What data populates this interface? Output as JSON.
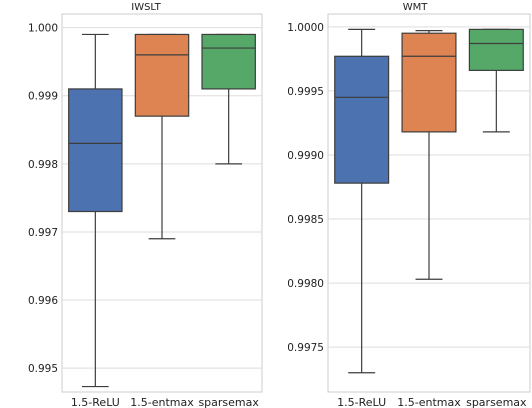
{
  "chart_data": [
    {
      "type": "box",
      "title": "IWSLT",
      "xlabel": "",
      "ylabel": "",
      "categories": [
        "1.5-ReLU",
        "1.5-entmax",
        "sparsemax"
      ],
      "ylim": [
        0.99465,
        1.0002
      ],
      "yticks": [
        "0.995",
        "0.996",
        "0.997",
        "0.998",
        "0.999",
        "1.000"
      ],
      "ytick_values": [
        0.995,
        0.996,
        0.997,
        0.998,
        0.999,
        1.0
      ],
      "grid": true,
      "series": [
        {
          "category": "1.5-ReLU",
          "whisker_low": 0.99473,
          "q1": 0.9973,
          "median": 0.9983,
          "q3": 0.9991,
          "whisker_high": 0.9999,
          "color": "#4c72b0"
        },
        {
          "category": "1.5-entmax",
          "whisker_low": 0.9969,
          "q1": 0.9987,
          "median": 0.9996,
          "q3": 0.9999,
          "whisker_high": 0.9999,
          "color": "#dd8452"
        },
        {
          "category": "sparsemax",
          "whisker_low": 0.998,
          "q1": 0.9991,
          "median": 0.9997,
          "q3": 0.9999,
          "whisker_high": 0.9999,
          "color": "#55a868"
        }
      ]
    },
    {
      "type": "box",
      "title": "WMT",
      "xlabel": "",
      "ylabel": "",
      "categories": [
        "1.5-ReLU",
        "1.5-entmax",
        "sparsemax"
      ],
      "ylim": [
        0.99715,
        1.0001
      ],
      "yticks": [
        "0.9975",
        "0.9980",
        "0.9985",
        "0.9990",
        "0.9995",
        "1.0000"
      ],
      "ytick_values": [
        0.9975,
        0.998,
        0.9985,
        0.999,
        0.9995,
        1.0
      ],
      "grid": true,
      "series": [
        {
          "category": "1.5-ReLU",
          "whisker_low": 0.9973,
          "q1": 0.99878,
          "median": 0.99945,
          "q3": 0.99977,
          "whisker_high": 0.99998,
          "color": "#4c72b0"
        },
        {
          "category": "1.5-entmax",
          "whisker_low": 0.99803,
          "q1": 0.99918,
          "median": 0.99977,
          "q3": 0.99995,
          "whisker_high": 0.99997,
          "color": "#dd8452"
        },
        {
          "category": "sparsemax",
          "whisker_low": 0.99918,
          "q1": 0.99966,
          "median": 0.99987,
          "q3": 0.99998,
          "whisker_high": 0.99998,
          "color": "#55a868"
        }
      ]
    }
  ]
}
